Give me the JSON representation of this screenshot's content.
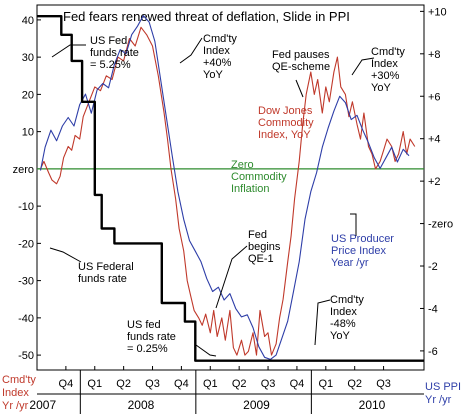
{
  "chart_data": {
    "type": "line",
    "title": "Fed fears renewed threat of deflation, Slide in PPI",
    "left_axis": {
      "label_lines": [
        "Cmd'ty",
        "Index",
        "Yr /yr"
      ],
      "ticks": [
        "40",
        "30",
        "20",
        "10",
        "zero",
        "-10",
        "-20",
        "-30",
        "-40",
        "-50"
      ],
      "tick_values": [
        40,
        30,
        20,
        10,
        0,
        -10,
        -20,
        -30,
        -40,
        -50
      ],
      "ylim": [
        -54,
        44
      ]
    },
    "right_axis": {
      "label_lines": [
        "US PPI",
        "Yr /yr"
      ],
      "ticks": [
        "+10",
        "+8",
        "+6",
        "+4",
        "+2",
        "-zero",
        "-2",
        "-4",
        "-6"
      ],
      "tick_values": [
        10,
        8,
        6,
        4,
        2,
        0,
        -2,
        -4,
        -6
      ],
      "ylim": [
        -6.9,
        10.3
      ]
    },
    "x_quarter_labels": [
      {
        "label": "Q4",
        "x": 2007.75
      },
      {
        "label": "Q1",
        "x": 2008.0
      },
      {
        "label": "Q2",
        "x": 2008.25
      },
      {
        "label": "Q3",
        "x": 2008.5
      },
      {
        "label": "Q4",
        "x": 2008.75
      },
      {
        "label": "Q1",
        "x": 2009.0
      },
      {
        "label": "Q2",
        "x": 2009.25
      },
      {
        "label": "Q3",
        "x": 2009.5
      },
      {
        "label": "Q4",
        "x": 2009.75
      },
      {
        "label": "Q1",
        "x": 2010.0
      },
      {
        "label": "Q2",
        "x": 2010.25
      },
      {
        "label": "Q3",
        "x": 2010.5
      }
    ],
    "x_year_labels": [
      {
        "label": "2007",
        "x": 2007.55
      },
      {
        "label": "2008",
        "x": 2008.4
      },
      {
        "label": "2009",
        "x": 2009.4
      },
      {
        "label": "2010",
        "x": 2010.4
      }
    ],
    "x_year_dividers": [
      2007.875,
      2008.875,
      2009.875
    ],
    "xlim": [
      2007.5,
      2010.85
    ],
    "zero_line": {
      "value": 0,
      "color": "#2e8b2e"
    },
    "series": [
      {
        "name": "Dow Jones Commodity Index, YoY",
        "color": "#c0392b",
        "axis": "left",
        "points": [
          [
            2007.53,
            0
          ],
          [
            2007.56,
            2
          ],
          [
            2007.6,
            -1
          ],
          [
            2007.63,
            -3
          ],
          [
            2007.67,
            -4
          ],
          [
            2007.7,
            -2
          ],
          [
            2007.73,
            3
          ],
          [
            2007.77,
            6
          ],
          [
            2007.8,
            5
          ],
          [
            2007.83,
            9
          ],
          [
            2007.87,
            8
          ],
          [
            2007.9,
            14
          ],
          [
            2007.95,
            18
          ],
          [
            2008.0,
            22
          ],
          [
            2008.05,
            21
          ],
          [
            2008.1,
            25
          ],
          [
            2008.15,
            24
          ],
          [
            2008.2,
            30
          ],
          [
            2008.25,
            29
          ],
          [
            2008.3,
            35
          ],
          [
            2008.35,
            33
          ],
          [
            2008.4,
            38
          ],
          [
            2008.45,
            36
          ],
          [
            2008.5,
            33
          ],
          [
            2008.55,
            25
          ],
          [
            2008.6,
            15
          ],
          [
            2008.63,
            8
          ],
          [
            2008.66,
            0
          ],
          [
            2008.7,
            -8
          ],
          [
            2008.73,
            -16
          ],
          [
            2008.77,
            -22
          ],
          [
            2008.8,
            -30
          ],
          [
            2008.83,
            -34
          ],
          [
            2008.86,
            -38
          ],
          [
            2008.9,
            -40
          ],
          [
            2008.93,
            -42
          ],
          [
            2008.96,
            -39
          ],
          [
            2009.0,
            -44
          ],
          [
            2009.03,
            -38
          ],
          [
            2009.06,
            -45
          ],
          [
            2009.1,
            -40
          ],
          [
            2009.13,
            -46
          ],
          [
            2009.17,
            -38
          ],
          [
            2009.2,
            -48
          ],
          [
            2009.23,
            -50
          ],
          [
            2009.27,
            -46
          ],
          [
            2009.3,
            -50
          ],
          [
            2009.33,
            -49
          ],
          [
            2009.37,
            -44
          ],
          [
            2009.4,
            -50
          ],
          [
            2009.43,
            -38
          ],
          [
            2009.47,
            -45
          ],
          [
            2009.5,
            -44
          ],
          [
            2009.53,
            -50
          ],
          [
            2009.57,
            -47
          ],
          [
            2009.6,
            -40
          ],
          [
            2009.63,
            -35
          ],
          [
            2009.67,
            -25
          ],
          [
            2009.7,
            -18
          ],
          [
            2009.73,
            -8
          ],
          [
            2009.77,
            2
          ],
          [
            2009.8,
            12
          ],
          [
            2009.83,
            20
          ],
          [
            2009.87,
            26
          ],
          [
            2009.9,
            20
          ],
          [
            2009.93,
            24
          ],
          [
            2009.97,
            15
          ],
          [
            2010.0,
            22
          ],
          [
            2010.03,
            18
          ],
          [
            2010.07,
            26
          ],
          [
            2010.1,
            30
          ],
          [
            2010.13,
            22
          ],
          [
            2010.17,
            20
          ],
          [
            2010.2,
            14
          ],
          [
            2010.23,
            18
          ],
          [
            2010.27,
            12
          ],
          [
            2010.3,
            8
          ],
          [
            2010.33,
            15
          ],
          [
            2010.37,
            6
          ],
          [
            2010.4,
            4
          ],
          [
            2010.43,
            0
          ],
          [
            2010.47,
            2
          ],
          [
            2010.5,
            5
          ],
          [
            2010.53,
            8
          ],
          [
            2010.57,
            6
          ],
          [
            2010.6,
            2
          ],
          [
            2010.63,
            4
          ],
          [
            2010.67,
            10
          ],
          [
            2010.7,
            4
          ],
          [
            2010.73,
            8
          ],
          [
            2010.77,
            6
          ]
        ]
      },
      {
        "name": "US Producer Price Index Year /yr",
        "color": "#2e3ea8",
        "axis": "right",
        "points": [
          [
            2007.53,
            2.5
          ],
          [
            2007.57,
            3.6
          ],
          [
            2007.62,
            4.4
          ],
          [
            2007.67,
            3.9
          ],
          [
            2007.72,
            4.6
          ],
          [
            2007.77,
            5.0
          ],
          [
            2007.82,
            4.6
          ],
          [
            2007.87,
            5.6
          ],
          [
            2007.92,
            6.1
          ],
          [
            2007.97,
            5.2
          ],
          [
            2008.02,
            6.3
          ],
          [
            2008.07,
            6.6
          ],
          [
            2008.12,
            6.4
          ],
          [
            2008.17,
            7.5
          ],
          [
            2008.22,
            8.2
          ],
          [
            2008.27,
            8.0
          ],
          [
            2008.32,
            8.9
          ],
          [
            2008.37,
            9.3
          ],
          [
            2008.42,
            9.8
          ],
          [
            2008.47,
            9.5
          ],
          [
            2008.52,
            8.6
          ],
          [
            2008.57,
            6.8
          ],
          [
            2008.62,
            5.0
          ],
          [
            2008.67,
            3.2
          ],
          [
            2008.72,
            1.5
          ],
          [
            2008.77,
            0.2
          ],
          [
            2008.82,
            -0.8
          ],
          [
            2008.87,
            -1.3
          ],
          [
            2008.92,
            -1.8
          ],
          [
            2008.97,
            -2.6
          ],
          [
            2009.02,
            -3.2
          ],
          [
            2009.07,
            -3.0
          ],
          [
            2009.12,
            -3.6
          ],
          [
            2009.17,
            -3.3
          ],
          [
            2009.22,
            -4.0
          ],
          [
            2009.27,
            -4.4
          ],
          [
            2009.32,
            -4.3
          ],
          [
            2009.37,
            -4.9
          ],
          [
            2009.42,
            -5.8
          ],
          [
            2009.47,
            -6.3
          ],
          [
            2009.52,
            -6.4
          ],
          [
            2009.57,
            -6.2
          ],
          [
            2009.62,
            -5.4
          ],
          [
            2009.67,
            -4.6
          ],
          [
            2009.72,
            -3.2
          ],
          [
            2009.77,
            -1.8
          ],
          [
            2009.82,
            0.2
          ],
          [
            2009.87,
            1.5
          ],
          [
            2009.92,
            2.4
          ],
          [
            2009.97,
            3.6
          ],
          [
            2010.02,
            4.5
          ],
          [
            2010.07,
            5.3
          ],
          [
            2010.12,
            6.0
          ],
          [
            2010.17,
            5.7
          ],
          [
            2010.22,
            4.9
          ],
          [
            2010.27,
            5.1
          ],
          [
            2010.32,
            4.4
          ],
          [
            2010.37,
            3.8
          ],
          [
            2010.42,
            3.1
          ],
          [
            2010.47,
            2.6
          ],
          [
            2010.52,
            3.1
          ],
          [
            2010.57,
            3.6
          ],
          [
            2010.62,
            2.9
          ],
          [
            2010.67,
            3.5
          ],
          [
            2010.72,
            3.2
          ]
        ]
      },
      {
        "name": "US Federal funds rate",
        "color": "#000000",
        "axis": "left",
        "step": true,
        "points": [
          [
            2007.5,
            41
          ],
          [
            2007.71,
            41
          ],
          [
            2007.71,
            36
          ],
          [
            2007.8,
            36
          ],
          [
            2007.8,
            29
          ],
          [
            2007.89,
            29
          ],
          [
            2007.89,
            18
          ],
          [
            2008.0,
            18
          ],
          [
            2008.0,
            -7
          ],
          [
            2008.06,
            -7
          ],
          [
            2008.06,
            -16
          ],
          [
            2008.17,
            -16
          ],
          [
            2008.17,
            -20
          ],
          [
            2008.58,
            -20
          ],
          [
            2008.58,
            -36
          ],
          [
            2008.78,
            -36
          ],
          [
            2008.78,
            -41
          ],
          [
            2008.87,
            -41
          ],
          [
            2008.87,
            -51.5
          ],
          [
            2010.85,
            -51.5
          ]
        ]
      }
    ],
    "annotations": [
      {
        "id": "fed-funds-rate-5",
        "lines": [
          "US Fed",
          "funds rate",
          "= 5.25%"
        ],
        "color": "#000000"
      },
      {
        "id": "cmdty-plus-40",
        "lines": [
          "Cmd'ty",
          "Index",
          "+40%",
          "YoY"
        ],
        "color": "#000000"
      },
      {
        "id": "fed-pauses-qe",
        "lines": [
          "Fed pauses",
          "QE-scheme"
        ],
        "color": "#000000"
      },
      {
        "id": "cmdty-plus-30",
        "lines": [
          "Cmd'ty",
          "Index",
          "+30%",
          "YoY"
        ],
        "color": "#000000"
      },
      {
        "id": "dow-jones-label",
        "lines": [
          "Dow Jones",
          "Commodity",
          "Index, YoY"
        ],
        "color": "#c0392b"
      },
      {
        "id": "zero-commodity",
        "lines": [
          "Zero",
          "Commodity",
          "Inflation"
        ],
        "color": "#2e8b2e"
      },
      {
        "id": "fed-begins-qe1",
        "lines": [
          "Fed",
          "begins",
          "QE-1"
        ],
        "color": "#000000"
      },
      {
        "id": "ppi-label",
        "lines": [
          "US Producer",
          "Price Index",
          "Year /yr"
        ],
        "color": "#2e3ea8"
      },
      {
        "id": "fed-funds-label",
        "lines": [
          "US Federal",
          "funds rate"
        ],
        "color": "#000000"
      },
      {
        "id": "fed-funds-rate-025",
        "lines": [
          "US fed",
          "funds rate",
          "= 0.25%"
        ],
        "color": "#000000"
      },
      {
        "id": "cmdty-minus-48",
        "lines": [
          "Cmd'ty",
          "Index",
          "-48%",
          "YoY"
        ],
        "color": "#000000"
      }
    ]
  }
}
